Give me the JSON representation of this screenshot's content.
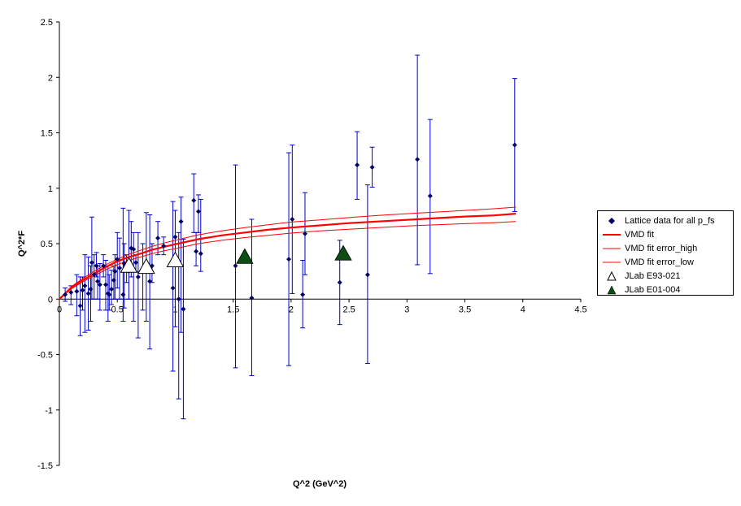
{
  "chart_data": {
    "type": "scatter",
    "title": "",
    "xlabel": "Q^2 (GeV^2)",
    "ylabel": "Q^2*F",
    "xlim": [
      0,
      4.5
    ],
    "ylim": [
      -1.5,
      2.5
    ],
    "x_ticks": [
      "0",
      "0.5",
      "1",
      "1.5",
      "2",
      "2.5",
      "3",
      "3.5",
      "4",
      "4.5"
    ],
    "y_ticks": [
      "-1.5",
      "-1",
      "-0.5",
      "0",
      "0.5",
      "1",
      "1.5",
      "2",
      "2.5"
    ],
    "grid": false,
    "legend_position": "right",
    "series": [
      {
        "name": "Lattice data for all p_fs",
        "marker": "diamond",
        "color": "#000066",
        "error_color": "#0000cc",
        "points": [
          {
            "x": 0.05,
            "y": 0.04,
            "lo": -0.02,
            "hi": 0.1
          },
          {
            "x": 0.1,
            "y": 0.06,
            "lo": -0.05,
            "hi": 0.12
          },
          {
            "x": 0.15,
            "y": 0.07,
            "lo": -0.15,
            "hi": 0.22
          },
          {
            "x": 0.18,
            "y": -0.06,
            "lo": -0.33,
            "hi": 0.2
          },
          {
            "x": 0.2,
            "y": 0.08,
            "lo": -0.1,
            "hi": 0.2
          },
          {
            "x": 0.22,
            "y": 0.12,
            "lo": -0.3,
            "hi": 0.4
          },
          {
            "x": 0.25,
            "y": 0.05,
            "lo": -0.28,
            "hi": 0.38
          },
          {
            "x": 0.27,
            "y": 0.09,
            "lo": -0.2,
            "hi": 0.3
          },
          {
            "x": 0.28,
            "y": 0.33,
            "lo": 0.0,
            "hi": 0.74
          },
          {
            "x": 0.3,
            "y": 0.22,
            "lo": 0.0,
            "hi": 0.4
          },
          {
            "x": 0.32,
            "y": 0.3,
            "lo": 0.2,
            "hi": 0.42
          },
          {
            "x": 0.33,
            "y": 0.16,
            "lo": 0.0,
            "hi": 0.3
          },
          {
            "x": 0.35,
            "y": 0.13,
            "lo": -0.1,
            "hi": 0.32
          },
          {
            "x": 0.38,
            "y": 0.3,
            "lo": 0.2,
            "hi": 0.4
          },
          {
            "x": 0.4,
            "y": 0.13,
            "lo": -0.1,
            "hi": 0.35
          },
          {
            "x": 0.42,
            "y": 0.05,
            "lo": -0.2,
            "hi": 0.3
          },
          {
            "x": 0.43,
            "y": 0.04,
            "lo": -0.1,
            "hi": 0.22
          },
          {
            "x": 0.45,
            "y": 0.09,
            "lo": -0.05,
            "hi": 0.26
          },
          {
            "x": 0.47,
            "y": 0.17,
            "lo": 0.0,
            "hi": 0.3
          },
          {
            "x": 0.48,
            "y": 0.25,
            "lo": 0.0,
            "hi": 0.4
          },
          {
            "x": 0.5,
            "y": 0.36,
            "lo": 0.1,
            "hi": 0.6
          },
          {
            "x": 0.52,
            "y": 0.28,
            "lo": 0.0,
            "hi": 0.55
          },
          {
            "x": 0.55,
            "y": 0.04,
            "lo": -0.2,
            "hi": 0.82
          },
          {
            "x": 0.56,
            "y": 0.32,
            "lo": -0.08,
            "hi": 0.5
          },
          {
            "x": 0.58,
            "y": 0.3,
            "lo": 0.15,
            "hi": 0.4
          },
          {
            "x": 0.6,
            "y": 0.25,
            "lo": 0.0,
            "hi": 0.8
          },
          {
            "x": 0.62,
            "y": 0.46,
            "lo": 0.2,
            "hi": 0.7
          },
          {
            "x": 0.64,
            "y": 0.45,
            "lo": -0.2,
            "hi": 0.6
          },
          {
            "x": 0.66,
            "y": 0.33,
            "lo": 0.25,
            "hi": 0.4
          },
          {
            "x": 0.68,
            "y": 0.2,
            "lo": -0.35,
            "hi": 0.6
          },
          {
            "x": 0.72,
            "y": 0.26,
            "lo": -0.1,
            "hi": 0.5
          },
          {
            "x": 0.75,
            "y": 0.3,
            "lo": -0.2,
            "hi": 0.78
          },
          {
            "x": 0.78,
            "y": 0.16,
            "lo": -0.45,
            "hi": 0.76
          },
          {
            "x": 0.8,
            "y": 0.3,
            "lo": 0.15,
            "hi": 0.5
          },
          {
            "x": 0.85,
            "y": 0.55,
            "lo": 0.4,
            "hi": 0.7
          },
          {
            "x": 0.9,
            "y": 0.48,
            "lo": 0.4,
            "hi": 0.56
          },
          {
            "x": 0.98,
            "y": 0.1,
            "lo": -0.65,
            "hi": 0.88
          },
          {
            "x": 1.0,
            "y": 0.56,
            "lo": -0.25,
            "hi": 0.8
          },
          {
            "x": 1.03,
            "y": 0.0,
            "lo": -0.9,
            "hi": 0.6
          },
          {
            "x": 1.05,
            "y": 0.7,
            "lo": -0.3,
            "hi": 0.92
          },
          {
            "x": 1.07,
            "y": -0.09,
            "lo": -1.08,
            "hi": 0.54
          },
          {
            "x": 1.16,
            "y": 0.89,
            "lo": 0.6,
            "hi": 1.13
          },
          {
            "x": 1.18,
            "y": 0.43,
            "lo": 0.3,
            "hi": 0.6
          },
          {
            "x": 1.2,
            "y": 0.79,
            "lo": 0.6,
            "hi": 0.94
          },
          {
            "x": 1.22,
            "y": 0.41,
            "lo": 0.25,
            "hi": 0.9
          },
          {
            "x": 1.52,
            "y": 0.3,
            "lo": -0.62,
            "hi": 1.21
          },
          {
            "x": 1.66,
            "y": 0.01,
            "lo": -0.69,
            "hi": 0.72
          },
          {
            "x": 1.98,
            "y": 0.36,
            "lo": -0.6,
            "hi": 1.32
          },
          {
            "x": 2.01,
            "y": 0.72,
            "lo": 0.05,
            "hi": 1.39
          },
          {
            "x": 2.1,
            "y": 0.04,
            "lo": -0.26,
            "hi": 0.35
          },
          {
            "x": 2.12,
            "y": 0.59,
            "lo": 0.22,
            "hi": 0.96
          },
          {
            "x": 2.42,
            "y": 0.15,
            "lo": -0.23,
            "hi": 0.53
          },
          {
            "x": 2.57,
            "y": 1.21,
            "lo": 0.9,
            "hi": 1.51
          },
          {
            "x": 2.66,
            "y": 0.22,
            "lo": -0.58,
            "hi": 1.03
          },
          {
            "x": 2.7,
            "y": 1.19,
            "lo": 1.01,
            "hi": 1.37
          },
          {
            "x": 3.09,
            "y": 1.26,
            "lo": 0.31,
            "hi": 2.2
          },
          {
            "x": 3.2,
            "y": 0.93,
            "lo": 0.23,
            "hi": 1.62
          },
          {
            "x": 3.93,
            "y": 1.39,
            "lo": 0.79,
            "hi": 1.99
          }
        ]
      },
      {
        "name": "VMD fit",
        "type": "line",
        "color": "#ff0000",
        "x": [
          0,
          0.05,
          0.1,
          0.2,
          0.3,
          0.4,
          0.5,
          0.6,
          0.7,
          0.8,
          0.9,
          1.0,
          1.2,
          1.4,
          1.6,
          1.8,
          2.0,
          2.25,
          2.5,
          2.75,
          3.0,
          3.25,
          3.5,
          3.75,
          3.94
        ],
        "y": [
          0,
          0.05,
          0.1,
          0.17,
          0.23,
          0.29,
          0.34,
          0.38,
          0.41,
          0.445,
          0.47,
          0.495,
          0.54,
          0.575,
          0.6,
          0.625,
          0.645,
          0.665,
          0.685,
          0.7,
          0.715,
          0.73,
          0.745,
          0.755,
          0.77
        ]
      },
      {
        "name": "VMD fit error_high",
        "type": "line",
        "color": "#ff0000",
        "x": [
          0,
          0.05,
          0.1,
          0.2,
          0.3,
          0.4,
          0.5,
          0.6,
          0.7,
          0.8,
          0.9,
          1.0,
          1.2,
          1.4,
          1.6,
          1.8,
          2.0,
          2.25,
          2.5,
          2.75,
          3.0,
          3.25,
          3.5,
          3.75,
          3.94
        ],
        "y": [
          0,
          0.055,
          0.11,
          0.185,
          0.25,
          0.31,
          0.36,
          0.405,
          0.44,
          0.475,
          0.505,
          0.53,
          0.58,
          0.615,
          0.645,
          0.67,
          0.695,
          0.715,
          0.735,
          0.755,
          0.77,
          0.785,
          0.8,
          0.815,
          0.83
        ]
      },
      {
        "name": "VMD fit error_low",
        "type": "line",
        "color": "#ff0000",
        "x": [
          0,
          0.05,
          0.1,
          0.2,
          0.3,
          0.4,
          0.5,
          0.6,
          0.7,
          0.8,
          0.9,
          1.0,
          1.2,
          1.4,
          1.6,
          1.8,
          2.0,
          2.25,
          2.5,
          2.75,
          3.0,
          3.25,
          3.5,
          3.75,
          3.94
        ],
        "y": [
          0,
          0.045,
          0.09,
          0.155,
          0.21,
          0.265,
          0.31,
          0.35,
          0.38,
          0.41,
          0.435,
          0.455,
          0.5,
          0.53,
          0.555,
          0.575,
          0.595,
          0.615,
          0.63,
          0.645,
          0.66,
          0.67,
          0.68,
          0.69,
          0.7
        ]
      },
      {
        "name": "JLab E93-021",
        "marker": "triangle-open",
        "color": "#000000",
        "points": [
          {
            "x": 0.6,
            "y": 0.3
          },
          {
            "x": 0.75,
            "y": 0.29
          },
          {
            "x": 1.0,
            "y": 0.35
          }
        ]
      },
      {
        "name": "JLab E01-004",
        "marker": "triangle-filled",
        "color": "#0b4d12",
        "points": [
          {
            "x": 1.6,
            "y": 0.38
          },
          {
            "x": 2.45,
            "y": 0.41
          }
        ]
      }
    ]
  }
}
